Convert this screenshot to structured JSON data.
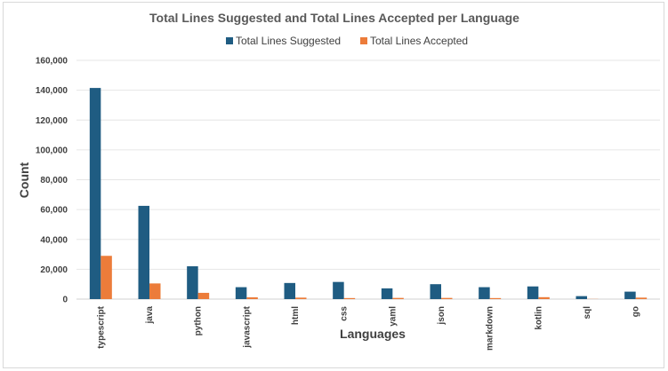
{
  "chart_data": {
    "type": "bar",
    "title": "Total Lines Suggested and Total Lines Accepted per Language",
    "xlabel": "Languages",
    "ylabel": "Count",
    "ylim": [
      0,
      160000
    ],
    "yticks": [
      0,
      20000,
      40000,
      60000,
      80000,
      100000,
      120000,
      140000,
      160000
    ],
    "ytick_labels": [
      "0",
      "20,000",
      "40,000",
      "60,000",
      "80,000",
      "100,000",
      "120,000",
      "140,000",
      "160,000"
    ],
    "grid": true,
    "legend_position": "top",
    "categories": [
      "typescript",
      "java",
      "python",
      "javascript",
      "html",
      "css",
      "yaml",
      "json",
      "markdown",
      "kotlin",
      "sql",
      "go"
    ],
    "series": [
      {
        "name": "Total Lines Suggested",
        "color": "#1f5c82",
        "values": [
          141500,
          62500,
          22000,
          8000,
          10800,
          11500,
          7200,
          10000,
          8000,
          8500,
          2000,
          5000
        ]
      },
      {
        "name": "Total Lines Accepted",
        "color": "#ec7c3a",
        "values": [
          29000,
          10500,
          4200,
          1200,
          1000,
          700,
          800,
          800,
          700,
          1300,
          100,
          1000
        ]
      }
    ]
  }
}
